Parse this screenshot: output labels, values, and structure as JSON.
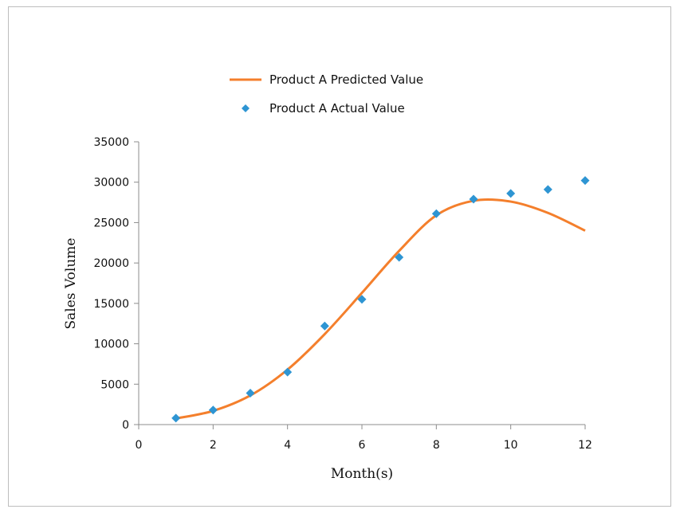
{
  "chart_data": {
    "type": "line",
    "title": "",
    "xlabel": "Month(s)",
    "ylabel": "Sales Volume",
    "xlim": [
      0,
      12
    ],
    "ylim": [
      0,
      35000
    ],
    "x_ticks": [
      "0",
      "2",
      "4",
      "6",
      "8",
      "10",
      "12"
    ],
    "y_ticks": [
      "0",
      "5000",
      "10000",
      "15000",
      "20000",
      "25000",
      "30000",
      "35000"
    ],
    "grid": false,
    "legend_position": "top",
    "series": [
      {
        "name": "Product A Predicted Value",
        "style": "smooth-line",
        "color": "#F47F2C",
        "x": [
          1,
          2,
          3,
          4,
          5,
          6,
          7,
          8,
          9,
          10,
          11,
          12
        ],
        "values": [
          750,
          1700,
          3600,
          6800,
          11200,
          16300,
          21500,
          25900,
          27700,
          27600,
          26200,
          24000
        ]
      },
      {
        "name": "Product A Actual Value",
        "style": "marker-diamond",
        "color": "#2E95D3",
        "x": [
          1,
          2,
          3,
          4,
          5,
          6,
          7,
          8,
          9,
          10,
          11,
          12
        ],
        "values": [
          800,
          1800,
          3900,
          6500,
          12200,
          15500,
          20700,
          26100,
          27900,
          28600,
          29100,
          30200
        ]
      }
    ]
  }
}
